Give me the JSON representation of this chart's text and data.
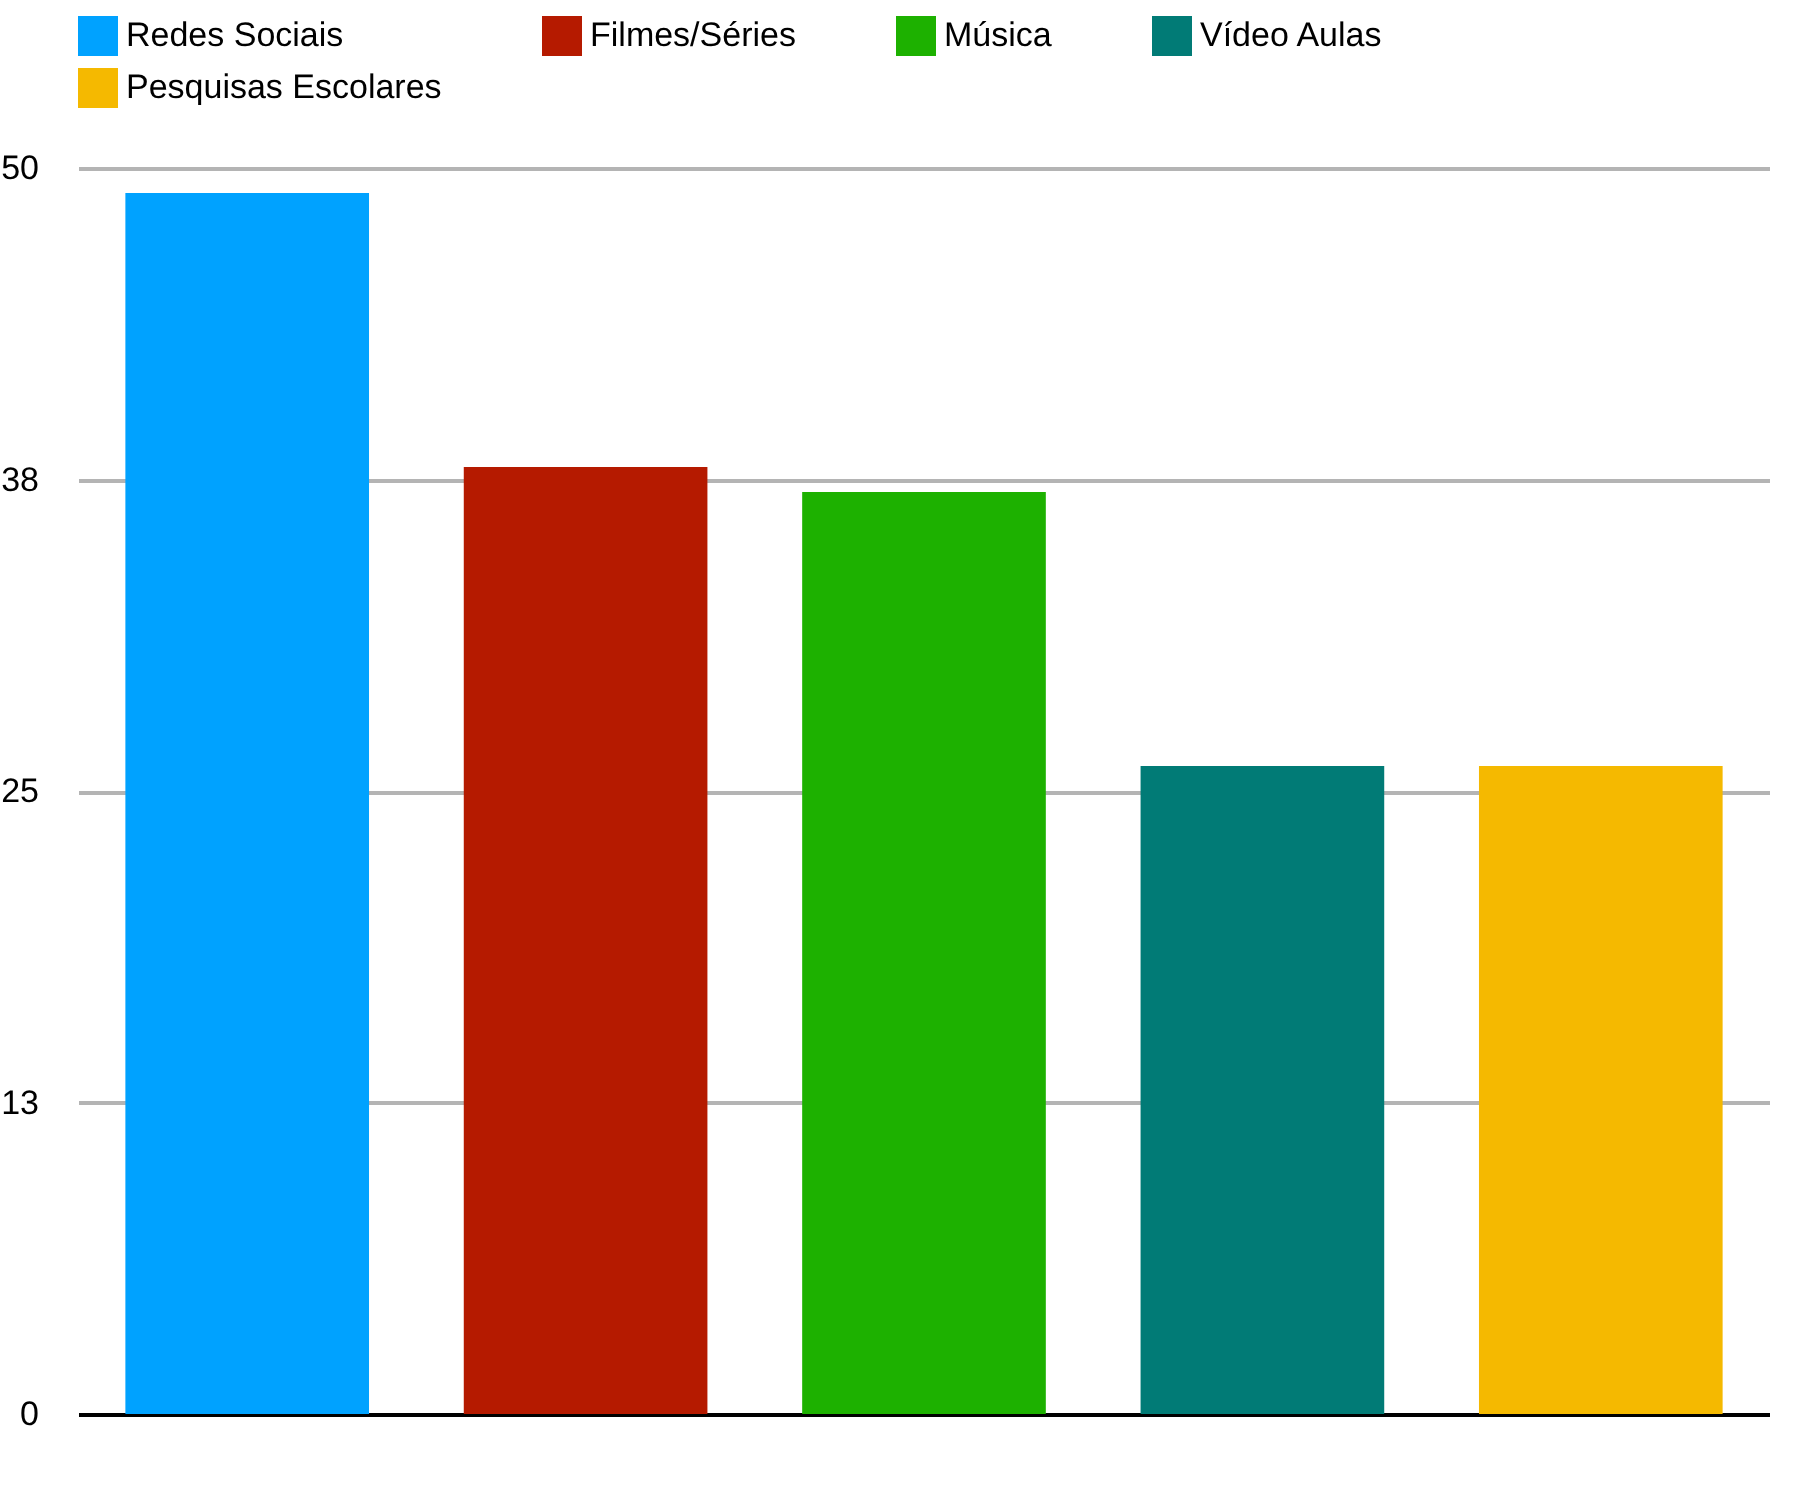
{
  "chart_data": {
    "type": "bar",
    "categories": [
      null,
      null,
      null,
      null,
      null
    ],
    "series": [
      {
        "name": "Redes Sociais",
        "color": "#00a2ff",
        "values": [
          49,
          null,
          null,
          null,
          null
        ]
      },
      {
        "name": "Filmes/Séries",
        "color": "#b51a00",
        "values": [
          null,
          38,
          null,
          null,
          null
        ]
      },
      {
        "name": "Música",
        "color": "#1db100",
        "values": [
          null,
          null,
          37,
          null,
          null
        ]
      },
      {
        "name": "Vídeo Aulas",
        "color": "#017b76",
        "values": [
          null,
          null,
          null,
          26,
          null
        ]
      },
      {
        "name": "Pesquisas Escolares",
        "color": "#f5b900",
        "values": [
          null,
          null,
          null,
          null,
          26
        ]
      }
    ],
    "ylim": [
      0,
      50
    ],
    "yticks": [
      0,
      {
        "value": 12.5,
        "label": "13"
      },
      25,
      {
        "value": 37.5,
        "label": "38"
      },
      50
    ],
    "grid": "y",
    "legend": "top",
    "tick_labels": "y"
  }
}
